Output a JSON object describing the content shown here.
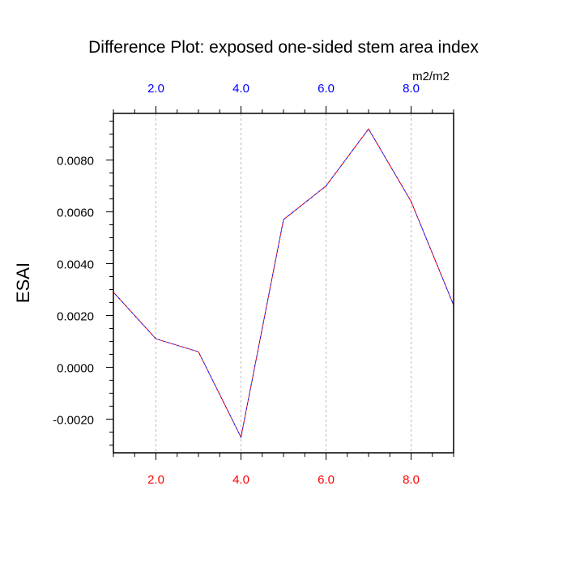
{
  "chart_data": {
    "type": "line",
    "title": "Difference Plot: exposed one-sided stem area index",
    "xlabel": "",
    "ylabel": "ESAI",
    "units": "m2/m2",
    "xlim": [
      1,
      9
    ],
    "ylim": [
      -0.0033,
      0.0098
    ],
    "grid": "vertical dashed at major x ticks",
    "x_ticks": [
      2,
      4,
      6,
      8
    ],
    "x_tick_labels": [
      "2.0",
      "4.0",
      "6.0",
      "8.0"
    ],
    "x_minor_step": 0.5,
    "y_ticks": [
      -0.002,
      0.0,
      0.002,
      0.004,
      0.006,
      0.008
    ],
    "y_tick_labels": [
      "-0.0020",
      "0.0000",
      "0.0020",
      "0.0040",
      "0.0060",
      "0.0080"
    ],
    "y_minor_step": 0.0005,
    "bottom_tick_color": "#ff0000",
    "top_tick_color": "#0000ff",
    "series": [
      {
        "color": "#ff0000",
        "dash": "dashed",
        "x": [
          1,
          2,
          3,
          4,
          5,
          6,
          7,
          8,
          9
        ],
        "y": [
          0.0029,
          0.0011,
          0.0006,
          -0.0027,
          0.0057,
          0.007,
          0.0092,
          0.0064,
          0.0024
        ]
      },
      {
        "color": "#0000ff",
        "dash": "dashed",
        "x": [
          1,
          2,
          3,
          4,
          5,
          6,
          7,
          8,
          9
        ],
        "y": [
          0.0029,
          0.0011,
          0.0006,
          -0.0027,
          0.0057,
          0.007,
          0.0092,
          0.0064,
          0.0024
        ]
      }
    ]
  }
}
